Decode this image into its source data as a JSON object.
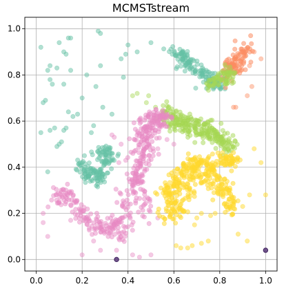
{
  "chart_data": {
    "type": "scatter",
    "title": "MCMSTstream",
    "xlabel": "",
    "ylabel": "",
    "xlim": [
      -0.05,
      1.05
    ],
    "ylim": [
      -0.05,
      1.05
    ],
    "xticks": [
      0.0,
      0.2,
      0.4,
      0.6,
      0.8,
      1.0
    ],
    "yticks": [
      0.0,
      0.2,
      0.4,
      0.6,
      0.8,
      1.0
    ],
    "xtick_labels": [
      "0.0",
      "0.2",
      "0.4",
      "0.6",
      "0.8",
      "1.0"
    ],
    "ytick_labels": [
      "0.0",
      "0.2",
      "0.4",
      "0.6",
      "0.8",
      "1.0"
    ],
    "grid": true,
    "colors": {
      "teal": "#66c2a5",
      "orange": "#fc8d62",
      "pink": "#e78ac3",
      "lime": "#a6d854",
      "yellow": "#ffd92f",
      "purple": "#5b3a7a"
    },
    "series": [
      {
        "color": "#66c2a5",
        "alpha": 0.5,
        "points": [
          [
            0.02,
            0.92
          ],
          [
            0.05,
            0.82
          ],
          [
            0.06,
            0.84
          ],
          [
            0.1,
            0.94
          ],
          [
            0.12,
            0.9
          ],
          [
            0.14,
            0.96
          ],
          [
            0.15,
            0.96
          ],
          [
            0.13,
            0.89
          ],
          [
            0.03,
            0.68
          ],
          [
            0.04,
            0.69
          ],
          [
            0.06,
            0.78
          ],
          [
            0.07,
            0.76
          ],
          [
            0.09,
            0.83
          ],
          [
            0.12,
            0.76
          ],
          [
            0.15,
            0.82
          ],
          [
            0.08,
            0.57
          ],
          [
            0.09,
            0.49
          ],
          [
            0.1,
            0.5
          ],
          [
            0.11,
            0.51
          ],
          [
            0.12,
            0.56
          ],
          [
            0.13,
            0.57
          ],
          [
            0.14,
            0.64
          ],
          [
            0.16,
            0.62
          ],
          [
            0.18,
            0.63
          ],
          [
            0.2,
            0.7
          ],
          [
            0.22,
            0.8
          ],
          [
            0.27,
            0.99
          ],
          [
            0.28,
            0.98
          ],
          [
            0.28,
            0.84
          ],
          [
            0.26,
            0.75
          ],
          [
            0.29,
            0.66
          ],
          [
            0.25,
            0.58
          ],
          [
            0.39,
            0.89
          ],
          [
            0.38,
            0.79
          ],
          [
            0.37,
            0.87
          ],
          [
            0.4,
            0.93
          ],
          [
            0.44,
            0.9
          ],
          [
            0.5,
            0.94
          ],
          [
            0.02,
            0.55
          ],
          [
            0.05,
            0.38
          ],
          [
            0.2,
            0.42
          ],
          [
            0.21,
            0.45
          ],
          [
            0.24,
            0.55
          ],
          [
            0.33,
            0.63
          ],
          [
            0.06,
            0.56
          ]
        ]
      },
      {
        "color": "#66c2a5",
        "alpha": 0.5,
        "cluster": [
          [
            0.6,
            0.9
          ],
          [
            0.62,
            0.9
          ],
          [
            0.64,
            0.88
          ],
          [
            0.65,
            0.86
          ],
          [
            0.66,
            0.85
          ],
          [
            0.68,
            0.84
          ],
          [
            0.7,
            0.82
          ],
          [
            0.72,
            0.81
          ],
          [
            0.74,
            0.8
          ],
          [
            0.76,
            0.79
          ],
          [
            0.77,
            0.77
          ],
          [
            0.78,
            0.76
          ],
          [
            0.8,
            0.77
          ]
        ],
        "cluster_count": 150,
        "cluster_spread": 0.016
      },
      {
        "color": "#66c2a5",
        "alpha": 0.5,
        "cluster": [
          [
            0.19,
            0.4
          ],
          [
            0.21,
            0.39
          ],
          [
            0.23,
            0.38
          ],
          [
            0.24,
            0.36
          ],
          [
            0.26,
            0.35
          ],
          [
            0.28,
            0.36
          ],
          [
            0.29,
            0.38
          ],
          [
            0.3,
            0.4
          ],
          [
            0.31,
            0.43
          ],
          [
            0.32,
            0.46
          ],
          [
            0.3,
            0.47
          ],
          [
            0.28,
            0.45
          ]
        ],
        "cluster_count": 150,
        "cluster_spread": 0.016
      },
      {
        "color": "#fc8d62",
        "alpha": 0.55,
        "cluster": [
          [
            0.82,
            0.79
          ],
          [
            0.84,
            0.83
          ],
          [
            0.86,
            0.85
          ],
          [
            0.88,
            0.88
          ],
          [
            0.9,
            0.91
          ],
          [
            0.91,
            0.92
          ],
          [
            0.89,
            0.85
          ],
          [
            0.87,
            0.82
          ],
          [
            0.85,
            0.81
          ]
        ],
        "cluster_count": 110,
        "cluster_spread": 0.018
      },
      {
        "color": "#fc8d62",
        "alpha": 0.45,
        "points": [
          [
            0.86,
            0.66
          ],
          [
            0.87,
            0.66
          ],
          [
            0.92,
            0.71
          ],
          [
            0.94,
            0.75
          ],
          [
            0.98,
            0.87
          ],
          [
            0.95,
            0.9
          ],
          [
            0.93,
            0.84
          ]
        ]
      },
      {
        "color": "#a6d854",
        "alpha": 0.5,
        "cluster": [
          [
            0.56,
            0.64
          ],
          [
            0.58,
            0.63
          ],
          [
            0.6,
            0.62
          ],
          [
            0.62,
            0.61
          ],
          [
            0.64,
            0.6
          ],
          [
            0.66,
            0.59
          ],
          [
            0.68,
            0.59
          ],
          [
            0.7,
            0.58
          ],
          [
            0.72,
            0.58
          ],
          [
            0.74,
            0.57
          ],
          [
            0.76,
            0.56
          ],
          [
            0.78,
            0.55
          ],
          [
            0.8,
            0.52
          ],
          [
            0.82,
            0.5
          ],
          [
            0.84,
            0.49
          ],
          [
            0.6,
            0.58
          ],
          [
            0.64,
            0.57
          ],
          [
            0.68,
            0.55
          ],
          [
            0.72,
            0.54
          ],
          [
            0.76,
            0.53
          ],
          [
            0.8,
            0.5
          ]
        ],
        "cluster_count": 260,
        "cluster_spread": 0.018
      },
      {
        "color": "#a6d854",
        "alpha": 0.5,
        "cluster": [
          [
            0.76,
            0.76
          ],
          [
            0.78,
            0.78
          ],
          [
            0.8,
            0.79
          ],
          [
            0.82,
            0.81
          ],
          [
            0.84,
            0.82
          ],
          [
            0.86,
            0.79
          ],
          [
            0.83,
            0.77
          ]
        ],
        "cluster_count": 70,
        "cluster_spread": 0.014
      },
      {
        "color": "#a6d854",
        "alpha": 0.45,
        "points": [
          [
            0.44,
            0.72
          ],
          [
            0.42,
            0.71
          ],
          [
            0.49,
            0.71
          ],
          [
            0.52,
            0.66
          ],
          [
            0.48,
            0.68
          ]
        ]
      },
      {
        "color": "#e78ac3",
        "alpha": 0.5,
        "cluster": [
          [
            0.08,
            0.26
          ],
          [
            0.1,
            0.28
          ],
          [
            0.12,
            0.28
          ],
          [
            0.14,
            0.27
          ],
          [
            0.16,
            0.25
          ],
          [
            0.18,
            0.23
          ],
          [
            0.2,
            0.21
          ],
          [
            0.22,
            0.19
          ],
          [
            0.24,
            0.17
          ],
          [
            0.26,
            0.15
          ],
          [
            0.28,
            0.14
          ],
          [
            0.3,
            0.13
          ],
          [
            0.32,
            0.13
          ],
          [
            0.34,
            0.14
          ],
          [
            0.36,
            0.16
          ],
          [
            0.38,
            0.19
          ],
          [
            0.39,
            0.22
          ],
          [
            0.4,
            0.26
          ],
          [
            0.41,
            0.3
          ],
          [
            0.42,
            0.34
          ],
          [
            0.43,
            0.38
          ],
          [
            0.44,
            0.42
          ],
          [
            0.45,
            0.46
          ],
          [
            0.45,
            0.5
          ],
          [
            0.46,
            0.54
          ],
          [
            0.48,
            0.57
          ],
          [
            0.5,
            0.6
          ],
          [
            0.52,
            0.62
          ],
          [
            0.54,
            0.62
          ],
          [
            0.56,
            0.61
          ],
          [
            0.58,
            0.6
          ],
          [
            0.36,
            0.1
          ],
          [
            0.38,
            0.13
          ],
          [
            0.44,
            0.35
          ],
          [
            0.46,
            0.3
          ],
          [
            0.47,
            0.26
          ],
          [
            0.48,
            0.22
          ],
          [
            0.47,
            0.4
          ],
          [
            0.48,
            0.45
          ],
          [
            0.49,
            0.5
          ],
          [
            0.5,
            0.55
          ],
          [
            0.53,
            0.57
          ],
          [
            0.55,
            0.58
          ],
          [
            0.44,
            0.55
          ],
          [
            0.46,
            0.6
          ]
        ],
        "cluster_count": 460,
        "cluster_spread": 0.02
      },
      {
        "color": "#e78ac3",
        "alpha": 0.45,
        "points": [
          [
            0.03,
            0.16
          ],
          [
            0.03,
            0.2
          ],
          [
            0.05,
            0.1
          ],
          [
            0.15,
            0.17
          ],
          [
            0.2,
            0.02
          ],
          [
            0.28,
            0.04
          ],
          [
            0.33,
            0.16
          ],
          [
            0.35,
            0.04
          ],
          [
            0.42,
            0.02
          ],
          [
            0.45,
            0.01
          ],
          [
            0.5,
            0.02
          ],
          [
            0.25,
            0.08
          ],
          [
            0.37,
            0.5
          ],
          [
            0.34,
            0.53
          ],
          [
            0.33,
            0.54
          ],
          [
            0.39,
            0.43
          ],
          [
            0.36,
            0.42
          ],
          [
            0.53,
            0.18
          ],
          [
            0.53,
            0.48
          ],
          [
            0.57,
            0.52
          ],
          [
            0.6,
            0.5
          ]
        ]
      },
      {
        "color": "#ffd92f",
        "alpha": 0.55,
        "cluster": [
          [
            0.56,
            0.23
          ],
          [
            0.57,
            0.27
          ],
          [
            0.58,
            0.3
          ],
          [
            0.6,
            0.33
          ],
          [
            0.62,
            0.36
          ],
          [
            0.64,
            0.38
          ],
          [
            0.66,
            0.4
          ],
          [
            0.68,
            0.41
          ],
          [
            0.7,
            0.42
          ],
          [
            0.72,
            0.42
          ],
          [
            0.74,
            0.41
          ],
          [
            0.76,
            0.4
          ],
          [
            0.78,
            0.38
          ],
          [
            0.8,
            0.35
          ],
          [
            0.82,
            0.31
          ],
          [
            0.84,
            0.28
          ],
          [
            0.85,
            0.25
          ],
          [
            0.6,
            0.25
          ],
          [
            0.58,
            0.19
          ],
          [
            0.62,
            0.22
          ],
          [
            0.64,
            0.26
          ],
          [
            0.68,
            0.33
          ],
          [
            0.72,
            0.35
          ],
          [
            0.76,
            0.33
          ],
          [
            0.8,
            0.3
          ],
          [
            0.84,
            0.23
          ],
          [
            0.66,
            0.3
          ],
          [
            0.7,
            0.38
          ],
          [
            0.74,
            0.36
          ]
        ],
        "cluster_count": 360,
        "cluster_spread": 0.019
      },
      {
        "color": "#ffd92f",
        "alpha": 0.55,
        "cluster": [
          [
            0.8,
            0.44
          ],
          [
            0.82,
            0.44
          ],
          [
            0.84,
            0.43
          ],
          [
            0.86,
            0.43
          ],
          [
            0.87,
            0.44
          ],
          [
            0.83,
            0.42
          ]
        ],
        "cluster_count": 50,
        "cluster_spread": 0.013
      },
      {
        "color": "#ffd92f",
        "alpha": 0.5,
        "points": [
          [
            0.61,
            0.06
          ],
          [
            0.63,
            0.05
          ],
          [
            0.66,
            0.05
          ],
          [
            0.68,
            0.06
          ],
          [
            0.72,
            0.07
          ],
          [
            0.75,
            0.08
          ],
          [
            0.69,
            0.15
          ],
          [
            0.7,
            0.18
          ],
          [
            0.72,
            0.2
          ],
          [
            0.76,
            0.19
          ],
          [
            0.78,
            0.2
          ],
          [
            0.88,
            0.11
          ],
          [
            0.92,
            0.08
          ],
          [
            0.9,
            0.23
          ],
          [
            0.93,
            0.28
          ],
          [
            0.95,
            0.48
          ],
          [
            0.98,
            0.42
          ],
          [
            1.0,
            0.28
          ],
          [
            0.86,
            0.24
          ]
        ]
      },
      {
        "color": "#5b3a7a",
        "alpha": 0.85,
        "stroke": "#3d1f5c",
        "points": [
          [
            0.35,
            0.0
          ],
          [
            1.0,
            0.04
          ]
        ]
      }
    ]
  }
}
